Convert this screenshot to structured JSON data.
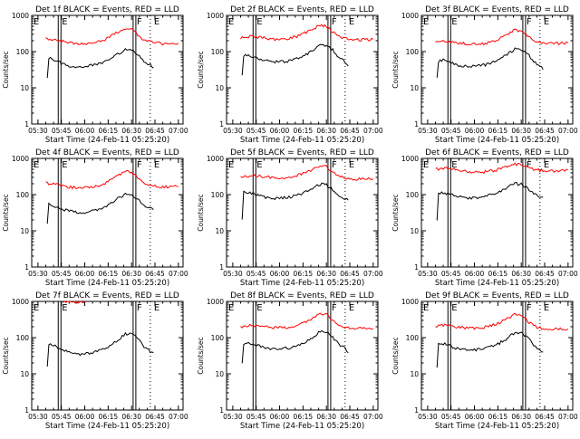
{
  "figure": {
    "background": "#ffffff",
    "foreground": "#000000",
    "events_color": "#000000",
    "lld_color": "#ff0000"
  },
  "chart_data": [
    {
      "type": "line",
      "title": "Det 1f BLACK = Events, RED = LLD",
      "xlabel": "Start Time (24-Feb-11 05:25:20)",
      "ylabel": "Counts/sec",
      "yscale": "log",
      "ylim": [
        1,
        1000
      ],
      "xlim": [
        "05:26",
        "07:03"
      ],
      "xticks": [
        "05:30",
        "05:45",
        "06:00",
        "06:15",
        "06:30",
        "06:45",
        "07:00"
      ],
      "yticks": [
        "1",
        "10",
        "100",
        "1000"
      ],
      "markers": [
        {
          "label": "E",
          "time": "05:43",
          "style": "solid"
        },
        {
          "label": "F",
          "time": "06:31",
          "style": "solid"
        },
        {
          "label": "E",
          "time": "06:42",
          "style": "dotted"
        }
      ],
      "series": [
        {
          "color": "red",
          "time": [
            "05:35",
            "05:42",
            "05:50",
            "05:58",
            "06:06",
            "06:14",
            "06:20",
            "06:26",
            "06:30",
            "06:34",
            "06:38",
            "06:44",
            "06:50",
            "06:58",
            "07:00"
          ],
          "values": [
            230,
            210,
            180,
            160,
            170,
            220,
            330,
            450,
            420,
            290,
            210,
            180,
            165,
            170,
            170
          ]
        },
        {
          "color": "black",
          "time": [
            "05:36",
            "05:37",
            "05:40",
            "05:45",
            "05:50",
            "05:58",
            "06:06",
            "06:14",
            "06:20",
            "06:26",
            "06:30",
            "06:34",
            "06:38",
            "06:42",
            "06:44"
          ],
          "values": [
            20,
            65,
            60,
            48,
            40,
            38,
            42,
            55,
            80,
            115,
            110,
            85,
            55,
            42,
            35
          ]
        }
      ]
    },
    {
      "type": "line",
      "title": "Det 2f BLACK = Events, RED = LLD",
      "xlabel": "Start Time (24-Feb-11 05:25:20)",
      "ylabel": "Counts/sec",
      "yscale": "log",
      "ylim": [
        1,
        1000
      ],
      "xlim": [
        "05:26",
        "07:03"
      ],
      "xticks": [
        "05:30",
        "05:45",
        "06:00",
        "06:15",
        "06:30",
        "06:45",
        "07:00"
      ],
      "yticks": [
        "1",
        "10",
        "100",
        "1000"
      ],
      "markers": [
        {
          "label": "E",
          "time": "05:43",
          "style": "solid"
        },
        {
          "label": "F",
          "time": "06:31",
          "style": "solid"
        },
        {
          "label": "E",
          "time": "06:42",
          "style": "dotted"
        }
      ],
      "series": [
        {
          "color": "red",
          "time": [
            "05:35",
            "05:42",
            "05:50",
            "05:58",
            "06:06",
            "06:14",
            "06:20",
            "06:26",
            "06:30",
            "06:34",
            "06:38",
            "06:44",
            "06:50",
            "06:58",
            "07:00"
          ],
          "values": [
            240,
            260,
            240,
            210,
            230,
            290,
            400,
            530,
            500,
            360,
            260,
            220,
            210,
            215,
            220
          ]
        },
        {
          "color": "black",
          "time": [
            "05:36",
            "05:37",
            "05:40",
            "05:45",
            "05:50",
            "05:58",
            "06:06",
            "06:14",
            "06:20",
            "06:26",
            "06:30",
            "06:34",
            "06:38",
            "06:42",
            "06:44"
          ],
          "values": [
            22,
            75,
            80,
            68,
            58,
            52,
            55,
            70,
            100,
            150,
            145,
            110,
            70,
            52,
            40
          ]
        }
      ]
    },
    {
      "type": "line",
      "title": "Det 3f BLACK = Events, RED = LLD",
      "xlabel": "Start Time (24-Feb-11 05:25:20)",
      "ylabel": "Counts/sec",
      "yscale": "log",
      "ylim": [
        1,
        1000
      ],
      "xlim": [
        "05:26",
        "07:03"
      ],
      "xticks": [
        "05:30",
        "05:45",
        "06:00",
        "06:15",
        "06:30",
        "06:45",
        "07:00"
      ],
      "yticks": [
        "1",
        "10",
        "100",
        "1000"
      ],
      "markers": [
        {
          "label": "E",
          "time": "05:43",
          "style": "solid"
        },
        {
          "label": "F",
          "time": "06:31",
          "style": "solid"
        },
        {
          "label": "E",
          "time": "06:42",
          "style": "dotted"
        }
      ],
      "series": [
        {
          "color": "red",
          "time": [
            "05:35",
            "05:42",
            "05:50",
            "05:58",
            "06:06",
            "06:14",
            "06:20",
            "06:26",
            "06:30",
            "06:34",
            "06:38",
            "06:44",
            "06:50",
            "06:58",
            "07:00"
          ],
          "values": [
            200,
            190,
            175,
            160,
            165,
            200,
            290,
            400,
            380,
            270,
            200,
            175,
            165,
            170,
            175
          ]
        },
        {
          "color": "black",
          "time": [
            "05:36",
            "05:37",
            "05:40",
            "05:45",
            "05:50",
            "05:58",
            "06:06",
            "06:14",
            "06:20",
            "06:26",
            "06:30",
            "06:34",
            "06:38",
            "06:42",
            "06:44"
          ],
          "values": [
            18,
            55,
            58,
            50,
            42,
            38,
            42,
            55,
            78,
            115,
            110,
            85,
            55,
            40,
            32
          ]
        }
      ]
    },
    {
      "type": "line",
      "title": "Det 4f BLACK = Events, RED = LLD",
      "xlabel": "Start Time (24-Feb-11 05:25:20)",
      "ylabel": "Counts/sec",
      "yscale": "log",
      "ylim": [
        1,
        1000
      ],
      "xlim": [
        "05:26",
        "07:03"
      ],
      "xticks": [
        "05:30",
        "05:45",
        "06:00",
        "06:15",
        "06:30",
        "06:45",
        "07:00"
      ],
      "yticks": [
        "1",
        "10",
        "100",
        "1000"
      ],
      "markers": [
        {
          "label": "E",
          "time": "05:43",
          "style": "solid"
        },
        {
          "label": "F",
          "time": "06:31",
          "style": "solid"
        },
        {
          "label": "E",
          "time": "06:42",
          "style": "dotted"
        }
      ],
      "series": [
        {
          "color": "red",
          "time": [
            "05:35",
            "05:42",
            "05:50",
            "05:58",
            "06:06",
            "06:14",
            "06:20",
            "06:26",
            "06:30",
            "06:34",
            "06:38",
            "06:44",
            "06:50",
            "06:58",
            "07:00"
          ],
          "values": [
            210,
            190,
            160,
            150,
            160,
            210,
            320,
            430,
            410,
            280,
            200,
            175,
            160,
            170,
            165
          ]
        },
        {
          "color": "black",
          "time": [
            "05:36",
            "05:37",
            "05:40",
            "05:45",
            "05:50",
            "05:58",
            "06:06",
            "06:14",
            "06:20",
            "06:26",
            "06:30",
            "06:34",
            "06:38",
            "06:42",
            "06:44"
          ],
          "values": [
            15,
            55,
            45,
            40,
            35,
            32,
            36,
            48,
            70,
            105,
            100,
            75,
            50,
            40,
            38
          ]
        }
      ]
    },
    {
      "type": "line",
      "title": "Det 5f BLACK = Events, RED = LLD",
      "xlabel": "Start Time (24-Feb-11 05:25:20)",
      "ylabel": "Counts/sec",
      "yscale": "log",
      "ylim": [
        1,
        1000
      ],
      "xlim": [
        "05:26",
        "07:03"
      ],
      "xticks": [
        "05:30",
        "05:45",
        "06:00",
        "06:15",
        "06:30",
        "06:45",
        "07:00"
      ],
      "yticks": [
        "1",
        "10",
        "100",
        "1000"
      ],
      "markers": [
        {
          "label": "E",
          "time": "05:43",
          "style": "solid"
        },
        {
          "label": "F",
          "time": "06:31",
          "style": "solid"
        },
        {
          "label": "E",
          "time": "06:42",
          "style": "dotted"
        }
      ],
      "series": [
        {
          "color": "red",
          "time": [
            "05:35",
            "05:42",
            "05:50",
            "05:58",
            "06:06",
            "06:14",
            "06:20",
            "06:26",
            "06:30",
            "06:34",
            "06:38",
            "06:44",
            "06:50",
            "06:58",
            "07:00"
          ],
          "values": [
            300,
            330,
            310,
            290,
            300,
            360,
            470,
            620,
            600,
            430,
            320,
            280,
            265,
            270,
            275
          ]
        },
        {
          "color": "black",
          "time": [
            "05:36",
            "05:37",
            "05:40",
            "05:45",
            "05:50",
            "05:58",
            "06:06",
            "06:14",
            "06:20",
            "06:26",
            "06:30",
            "06:34",
            "06:38",
            "06:42",
            "06:44"
          ],
          "values": [
            20,
            120,
            115,
            100,
            85,
            78,
            85,
            105,
            140,
            195,
            185,
            140,
            95,
            75,
            70
          ]
        }
      ]
    },
    {
      "type": "line",
      "title": "Det 6f BLACK = Events, RED = LLD",
      "xlabel": "Start Time (24-Feb-11 05:25:20)",
      "ylabel": "Counts/sec",
      "yscale": "log",
      "ylim": [
        1,
        1000
      ],
      "xlim": [
        "05:26",
        "07:03"
      ],
      "xticks": [
        "05:30",
        "05:45",
        "06:00",
        "06:15",
        "06:30",
        "06:45",
        "07:00"
      ],
      "yticks": [
        "1",
        "10",
        "100",
        "1000"
      ],
      "markers": [
        {
          "label": "E",
          "time": "05:43",
          "style": "solid"
        },
        {
          "label": "F",
          "time": "06:31",
          "style": "solid"
        },
        {
          "label": "E",
          "time": "06:42",
          "style": "dotted"
        }
      ],
      "series": [
        {
          "color": "red",
          "time": [
            "05:35",
            "05:42",
            "05:50",
            "05:58",
            "06:06",
            "06:14",
            "06:20",
            "06:26",
            "06:30",
            "06:34",
            "06:38",
            "06:44",
            "06:50",
            "06:58",
            "07:00"
          ],
          "values": [
            500,
            520,
            480,
            420,
            420,
            480,
            580,
            700,
            680,
            560,
            490,
            460,
            450,
            470,
            480
          ]
        },
        {
          "color": "black",
          "time": [
            "05:36",
            "05:37",
            "05:40",
            "05:45",
            "05:50",
            "05:58",
            "06:06",
            "06:14",
            "06:20",
            "06:26",
            "06:30",
            "06:34",
            "06:38",
            "06:42",
            "06:44"
          ],
          "values": [
            20,
            110,
            112,
            100,
            88,
            80,
            88,
            110,
            150,
            200,
            190,
            150,
            110,
            90,
            85
          ]
        }
      ]
    },
    {
      "type": "line",
      "title": "Det 7f BLACK = Events, RED = LLD",
      "xlabel": "Start Time (24-Feb-11 05:25:20)",
      "ylabel": "Counts/sec",
      "yscale": "log",
      "ylim": [
        1,
        1000
      ],
      "xlim": [
        "05:26",
        "07:03"
      ],
      "xticks": [
        "05:30",
        "05:45",
        "06:00",
        "06:15",
        "06:30",
        "06:45",
        "07:00"
      ],
      "yticks": [
        "1",
        "10",
        "100",
        "1000"
      ],
      "markers": [
        {
          "label": "E",
          "time": "05:43",
          "style": "solid"
        },
        {
          "label": "F",
          "time": "06:31",
          "style": "solid"
        },
        {
          "label": "E",
          "time": "06:42",
          "style": "dotted"
        }
      ],
      "series": [
        {
          "color": "red",
          "time": [
            "05:46",
            "05:50",
            "05:55",
            "06:00"
          ],
          "values": [
            1000,
            980,
            950,
            1000
          ]
        },
        {
          "color": "black",
          "time": [
            "05:36",
            "05:37",
            "05:40",
            "05:45",
            "05:50",
            "05:58",
            "06:06",
            "06:14",
            "06:20",
            "06:26",
            "06:30",
            "06:34",
            "06:38",
            "06:42",
            "06:44"
          ],
          "values": [
            15,
            65,
            60,
            48,
            38,
            34,
            38,
            52,
            78,
            125,
            130,
            95,
            55,
            42,
            38
          ]
        }
      ]
    },
    {
      "type": "line",
      "title": "Det 8f BLACK = Events, RED = LLD",
      "xlabel": "Start Time (24-Feb-11 05:25:20)",
      "ylabel": "Counts/sec",
      "yscale": "log",
      "ylim": [
        1,
        1000
      ],
      "xlim": [
        "05:26",
        "07:03"
      ],
      "xticks": [
        "05:30",
        "05:45",
        "06:00",
        "06:15",
        "06:30",
        "06:45",
        "07:00"
      ],
      "yticks": [
        "1",
        "10",
        "100",
        "1000"
      ],
      "markers": [
        {
          "label": "E",
          "time": "05:43",
          "style": "solid"
        },
        {
          "label": "F",
          "time": "06:31",
          "style": "solid"
        },
        {
          "label": "E",
          "time": "06:42",
          "style": "dotted"
        }
      ],
      "series": [
        {
          "color": "red",
          "time": [
            "05:35",
            "05:42",
            "05:50",
            "05:58",
            "06:06",
            "06:14",
            "06:20",
            "06:26",
            "06:30",
            "06:34",
            "06:38",
            "06:44",
            "06:50",
            "06:58",
            "07:00"
          ],
          "values": [
            200,
            215,
            200,
            185,
            195,
            240,
            330,
            450,
            430,
            300,
            220,
            185,
            175,
            180,
            180
          ]
        },
        {
          "color": "black",
          "time": [
            "05:36",
            "05:37",
            "05:40",
            "05:45",
            "05:50",
            "05:58",
            "06:06",
            "06:14",
            "06:20",
            "06:26",
            "06:30",
            "06:34",
            "06:38",
            "06:42",
            "06:44"
          ],
          "values": [
            20,
            70,
            72,
            62,
            52,
            48,
            52,
            65,
            95,
            145,
            140,
            105,
            65,
            50,
            38
          ]
        }
      ]
    },
    {
      "type": "line",
      "title": "Det 9f BLACK = Events, RED = LLD",
      "xlabel": "Start Time (24-Feb-11 05:25:20)",
      "ylabel": "Counts/sec",
      "yscale": "log",
      "ylim": [
        1,
        1000
      ],
      "xlim": [
        "05:26",
        "07:03"
      ],
      "xticks": [
        "05:30",
        "05:45",
        "06:00",
        "06:15",
        "06:30",
        "06:45",
        "07:00"
      ],
      "yticks": [
        "1",
        "10",
        "100",
        "1000"
      ],
      "markers": [
        {
          "label": "E",
          "time": "05:43",
          "style": "solid"
        },
        {
          "label": "F",
          "time": "06:31",
          "style": "solid"
        },
        {
          "label": "E",
          "time": "06:42",
          "style": "dotted"
        }
      ],
      "series": [
        {
          "color": "red",
          "time": [
            "05:35",
            "05:42",
            "05:50",
            "05:58",
            "06:06",
            "06:14",
            "06:20",
            "06:26",
            "06:30",
            "06:34",
            "06:38",
            "06:44",
            "06:50",
            "06:58",
            "07:00"
          ],
          "values": [
            210,
            220,
            195,
            180,
            190,
            235,
            320,
            440,
            420,
            290,
            210,
            180,
            170,
            175,
            175
          ]
        },
        {
          "color": "black",
          "time": [
            "05:36",
            "05:37",
            "05:40",
            "05:45",
            "05:50",
            "05:58",
            "06:06",
            "06:14",
            "06:20",
            "06:26",
            "06:30",
            "06:34",
            "06:38",
            "06:42",
            "06:44"
          ],
          "values": [
            15,
            68,
            68,
            58,
            48,
            45,
            50,
            62,
            90,
            140,
            135,
            100,
            62,
            48,
            40
          ]
        }
      ]
    }
  ]
}
